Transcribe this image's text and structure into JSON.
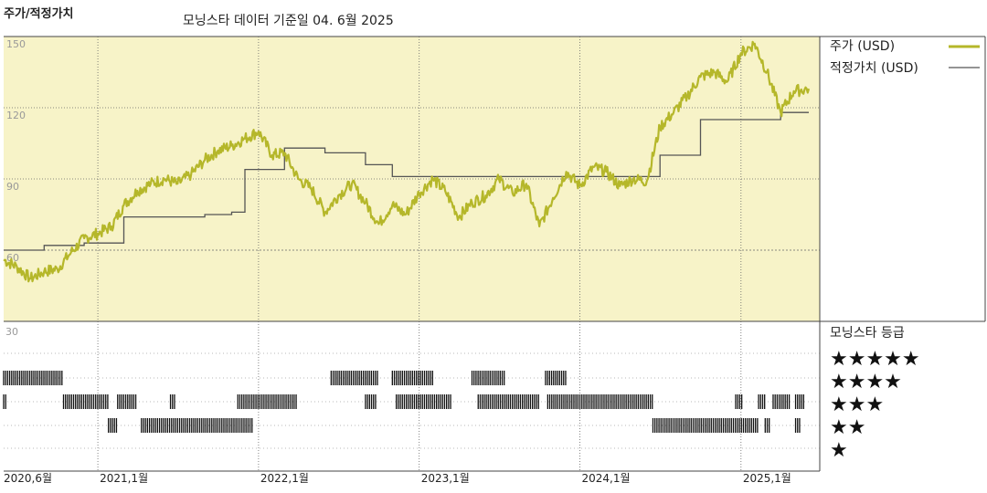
{
  "header": {
    "title": "주가/적정가치",
    "source": "모닝스타 데이터 기준일 04. 6월 2025"
  },
  "colors": {
    "plot_bg": "#f7f3c8",
    "price_line": "#b5b72a",
    "fair_value_line": "#555555",
    "grid": "#666666",
    "rating_bar": "#111111"
  },
  "chart_data": [
    {
      "type": "line",
      "title": "주가/적정가치",
      "x_axis": {
        "type": "date",
        "range": [
          "2020-06-01",
          "2025-06-04"
        ]
      },
      "y_axis": {
        "range": [
          30,
          150
        ],
        "ticks": [
          150,
          120,
          90,
          60,
          30
        ]
      },
      "legend": [
        {
          "label": "주가 (USD)",
          "color": "#b5b72a"
        },
        {
          "label": "적정가치 (USD)",
          "color": "#555555"
        }
      ],
      "series": [
        {
          "name": "주가 (USD)",
          "points": [
            [
              "2020-06-01",
              56
            ],
            [
              "2020-07-01",
              53
            ],
            [
              "2020-08-01",
              48
            ],
            [
              "2020-09-01",
              51
            ],
            [
              "2020-10-01",
              52
            ],
            [
              "2020-11-01",
              59
            ],
            [
              "2020-12-01",
              65
            ],
            [
              "2021-01-01",
              67
            ],
            [
              "2021-02-01",
              70
            ],
            [
              "2021-03-01",
              79
            ],
            [
              "2021-04-01",
              85
            ],
            [
              "2021-05-01",
              88
            ],
            [
              "2021-06-01",
              90
            ],
            [
              "2021-07-01",
              88
            ],
            [
              "2021-08-01",
              92
            ],
            [
              "2021-09-01",
              98
            ],
            [
              "2021-10-01",
              102
            ],
            [
              "2021-11-01",
              104
            ],
            [
              "2021-12-01",
              107
            ],
            [
              "2022-01-01",
              110
            ],
            [
              "2022-02-01",
              100
            ],
            [
              "2022-03-01",
              101
            ],
            [
              "2022-04-01",
              90
            ],
            [
              "2022-05-01",
              86
            ],
            [
              "2022-06-01",
              76
            ],
            [
              "2022-07-01",
              83
            ],
            [
              "2022-08-01",
              88
            ],
            [
              "2022-09-01",
              80
            ],
            [
              "2022-10-01",
              71
            ],
            [
              "2022-11-01",
              79
            ],
            [
              "2022-12-01",
              75
            ],
            [
              "2023-01-01",
              84
            ],
            [
              "2023-02-01",
              90
            ],
            [
              "2023-03-01",
              85
            ],
            [
              "2023-04-01",
              74
            ],
            [
              "2023-05-01",
              80
            ],
            [
              "2023-06-01",
              83
            ],
            [
              "2023-07-01",
              90
            ],
            [
              "2023-08-01",
              84
            ],
            [
              "2023-09-01",
              88
            ],
            [
              "2023-10-01",
              70
            ],
            [
              "2023-11-01",
              82
            ],
            [
              "2023-12-01",
              93
            ],
            [
              "2024-01-01",
              87
            ],
            [
              "2024-02-01",
              95
            ],
            [
              "2024-03-01",
              93
            ],
            [
              "2024-04-01",
              87
            ],
            [
              "2024-05-01",
              90
            ],
            [
              "2024-06-01",
              89
            ],
            [
              "2024-07-01",
              112
            ],
            [
              "2024-08-01",
              118
            ],
            [
              "2024-09-01",
              125
            ],
            [
              "2024-10-01",
              133
            ],
            [
              "2024-11-01",
              135
            ],
            [
              "2024-12-01",
              131
            ],
            [
              "2025-01-01",
              143
            ],
            [
              "2025-02-01",
              147
            ],
            [
              "2025-03-01",
              135
            ],
            [
              "2025-04-01",
              118
            ],
            [
              "2025-05-01",
              127
            ],
            [
              "2025-06-04",
              128
            ]
          ]
        },
        {
          "name": "적정가치 (USD)",
          "points": [
            [
              "2020-06-01",
              60
            ],
            [
              "2020-09-01",
              60
            ],
            [
              "2020-09-01",
              62
            ],
            [
              "2020-12-01",
              62
            ],
            [
              "2020-12-01",
              63
            ],
            [
              "2021-03-01",
              63
            ],
            [
              "2021-03-01",
              74
            ],
            [
              "2021-09-01",
              74
            ],
            [
              "2021-09-01",
              75
            ],
            [
              "2021-11-01",
              75
            ],
            [
              "2021-11-01",
              76
            ],
            [
              "2021-12-01",
              76
            ],
            [
              "2021-12-01",
              94
            ],
            [
              "2022-03-01",
              94
            ],
            [
              "2022-03-01",
              103
            ],
            [
              "2022-06-01",
              103
            ],
            [
              "2022-06-01",
              101
            ],
            [
              "2022-09-01",
              101
            ],
            [
              "2022-09-01",
              96
            ],
            [
              "2022-11-01",
              96
            ],
            [
              "2022-11-01",
              91
            ],
            [
              "2024-07-01",
              91
            ],
            [
              "2024-07-01",
              100
            ],
            [
              "2024-10-01",
              100
            ],
            [
              "2024-10-01",
              115
            ],
            [
              "2025-04-01",
              115
            ],
            [
              "2025-04-01",
              118
            ],
            [
              "2025-06-04",
              118
            ]
          ]
        }
      ]
    },
    {
      "type": "table",
      "title": "모닝스타 등급",
      "rows": [
        "★★★★★",
        "★★★★",
        "★★★",
        "★★",
        "★"
      ],
      "rating_periods": [
        {
          "stars": 4,
          "from": "2020-06-01",
          "to": "2020-10-15"
        },
        {
          "stars": 3,
          "from": "2020-06-01",
          "to": "2020-06-10"
        },
        {
          "stars": 3,
          "from": "2020-10-15",
          "to": "2021-01-25"
        },
        {
          "stars": 3,
          "from": "2021-02-15",
          "to": "2021-04-01"
        },
        {
          "stars": 3,
          "from": "2021-06-15",
          "to": "2021-06-25"
        },
        {
          "stars": 3,
          "from": "2021-11-15",
          "to": "2022-04-01"
        },
        {
          "stars": 3,
          "from": "2022-09-01",
          "to": "2022-09-25"
        },
        {
          "stars": 3,
          "from": "2022-11-10",
          "to": "2023-03-15"
        },
        {
          "stars": 3,
          "from": "2023-05-15",
          "to": "2023-10-01"
        },
        {
          "stars": 3,
          "from": "2023-10-20",
          "to": "2024-06-15"
        },
        {
          "stars": 3,
          "from": "2024-12-20",
          "to": "2025-01-05"
        },
        {
          "stars": 3,
          "from": "2025-02-10",
          "to": "2025-02-25"
        },
        {
          "stars": 3,
          "from": "2025-03-15",
          "to": "2025-04-25"
        },
        {
          "stars": 3,
          "from": "2025-05-05",
          "to": "2025-05-25"
        },
        {
          "stars": 2,
          "from": "2021-01-25",
          "to": "2021-02-15"
        },
        {
          "stars": 2,
          "from": "2021-04-10",
          "to": "2021-12-20"
        },
        {
          "stars": 2,
          "from": "2024-06-15",
          "to": "2025-02-10"
        },
        {
          "stars": 2,
          "from": "2025-02-25",
          "to": "2025-03-10"
        },
        {
          "stars": 2,
          "from": "2025-05-05",
          "to": "2025-05-15"
        },
        {
          "stars": 4,
          "from": "2022-06-15",
          "to": "2022-10-01"
        },
        {
          "stars": 4,
          "from": "2022-11-01",
          "to": "2023-02-01"
        },
        {
          "stars": 4,
          "from": "2023-05-01",
          "to": "2023-07-15"
        },
        {
          "stars": 4,
          "from": "2023-10-15",
          "to": "2023-12-01"
        }
      ]
    }
  ],
  "x_ticks": [
    "2020,6월",
    "2021,1월",
    "2022,1월",
    "2023,1월",
    "2024,1월",
    "2025,1월"
  ],
  "rating_panel": {
    "label": "모닝스타 등급",
    "y_label": "30"
  }
}
